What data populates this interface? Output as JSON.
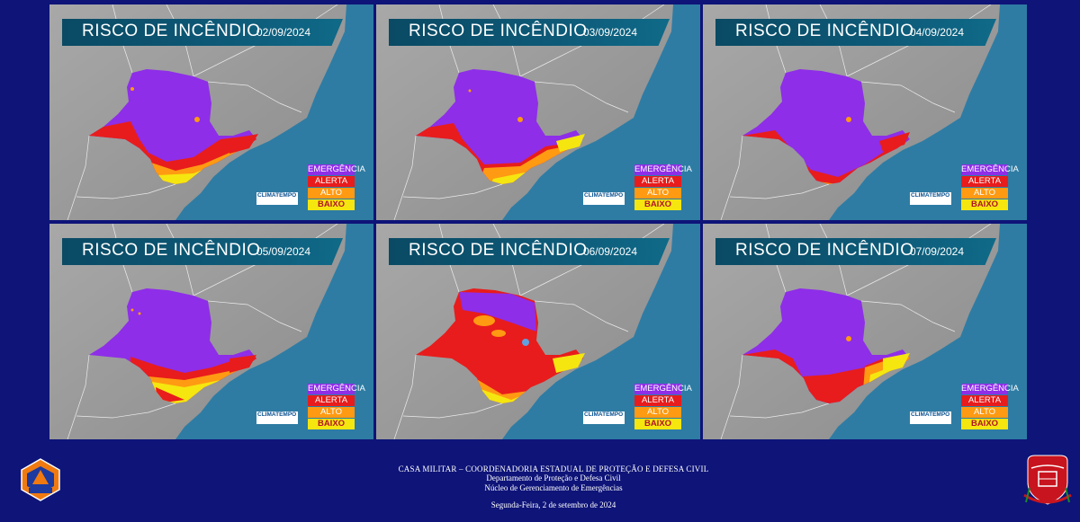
{
  "panels": [
    {
      "title": "RISCO DE INCÊNDIO",
      "date": "02/09/2024",
      "brand": "CLIMATEMPO"
    },
    {
      "title": "RISCO DE INCÊNDIO",
      "date": "03/09/2024",
      "brand": "CLIMATEMPO"
    },
    {
      "title": "RISCO DE INCÊNDIO",
      "date": "04/09/2024",
      "brand": "CLIMATEMPO"
    },
    {
      "title": "RISCO DE INCÊNDIO",
      "date": "05/09/2024",
      "brand": "CLIMATEMPO"
    },
    {
      "title": "RISCO DE INCÊNDIO",
      "date": "06/09/2024",
      "brand": "CLIMATEMPO"
    },
    {
      "title": "RISCO DE INCÊNDIO",
      "date": "07/09/2024",
      "brand": "CLIMATEMPO"
    }
  ],
  "legend": {
    "emergencia": "EMERGÊNCIA",
    "alerta": "ALERTA",
    "alto": "ALTO",
    "baixo": "BAIXO"
  },
  "colors": {
    "emergencia": "#8e2ee8",
    "alerta": "#e81c1c",
    "alto": "#ff9a12",
    "baixo": "#f5e60f",
    "ocean": "#2e7ca4",
    "land": "#9a9a9a",
    "page_background": "#0e1478"
  },
  "footer": {
    "line1": "CASA MILITAR – COORDENADORIA ESTADUAL DE PROTEÇÃO E DEFESA CIVIL",
    "line2": "Departamento de Proteção e Defesa Civil",
    "line3": "Núcleo de Gerenciamento de Emergências",
    "date": "Segunda-Feira, 2 de setembro de 2024"
  },
  "logos": {
    "left": "defesa-civil-emblem",
    "right": "sao-paulo-state-coat-of-arms"
  }
}
